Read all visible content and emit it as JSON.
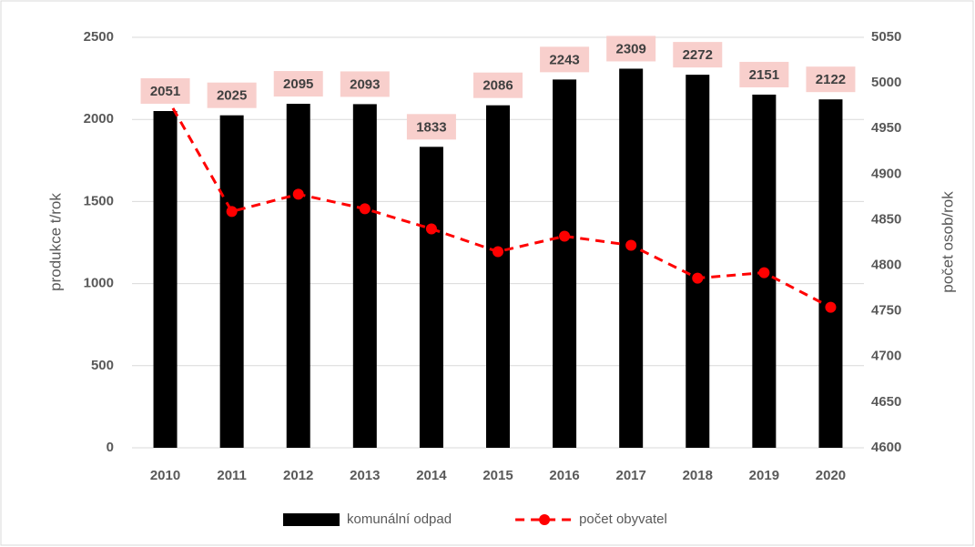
{
  "chart_data": {
    "type": "bar",
    "categories": [
      "2010",
      "2011",
      "2012",
      "2013",
      "2014",
      "2015",
      "2016",
      "2017",
      "2018",
      "2019",
      "2020"
    ],
    "series": [
      {
        "name": "komunální odpad",
        "type": "bar",
        "color": "#000000",
        "values": [
          2051,
          2025,
          2095,
          2093,
          1833,
          2086,
          2243,
          2309,
          2272,
          2151,
          2122
        ]
      },
      {
        "name": "počet obyvatel",
        "type": "line",
        "axis": "y2",
        "color": "#ff0000",
        "values": [
          4987,
          4859,
          4878,
          4862,
          4840,
          4815,
          4832,
          4822,
          4786,
          4792,
          4754
        ]
      }
    ],
    "y_label": "produkce t/rok",
    "y2_label": "počet osob/rok",
    "ylim": [
      0,
      2500
    ],
    "yticks": [
      0,
      500,
      1000,
      1500,
      2000,
      2500
    ],
    "y2lim": [
      4600,
      5050
    ],
    "y2ticks": [
      4600,
      4650,
      4700,
      4750,
      4800,
      4850,
      4900,
      4950,
      5000,
      5050
    ],
    "grid": true,
    "legend": "bottom",
    "label_background": "#f8cfcc"
  }
}
